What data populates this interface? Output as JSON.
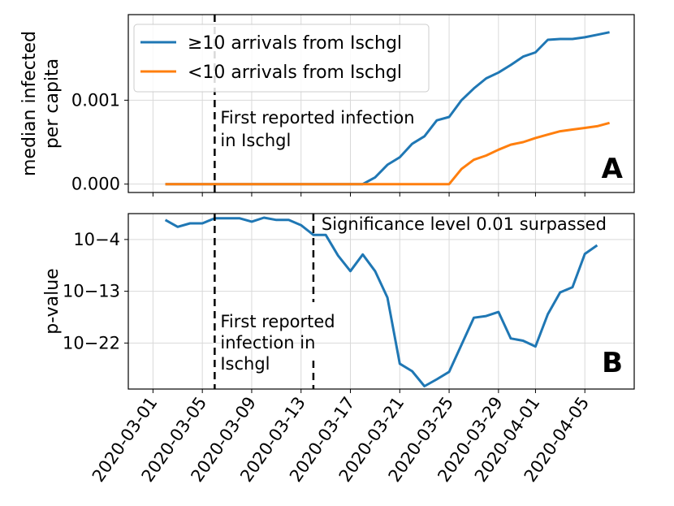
{
  "chart_data": [
    {
      "type": "line",
      "panel_label": "A",
      "ylabel_lines": [
        "median infected",
        "per capita"
      ],
      "ylim": [
        -0.0001,
        0.00202
      ],
      "yticks": [
        0.0,
        0.001
      ],
      "ytick_labels": [
        "0.000",
        "0.001"
      ],
      "xdomain": [
        "2020-02-28",
        "2020-04-09"
      ],
      "grid": true,
      "legend_position": "top-left",
      "series": [
        {
          "name": "≥10 arrivals from Ischgl",
          "color": "#1f77b4",
          "x": [
            "2020-03-02",
            "2020-03-18",
            "2020-03-19",
            "2020-03-20",
            "2020-03-21",
            "2020-03-22",
            "2020-03-23",
            "2020-03-24",
            "2020-03-25",
            "2020-03-26",
            "2020-03-27",
            "2020-03-28",
            "2020-03-29",
            "2020-03-30",
            "2020-03-31",
            "2020-04-01",
            "2020-04-02",
            "2020-04-03",
            "2020-04-04",
            "2020-04-05",
            "2020-04-06",
            "2020-04-07"
          ],
          "y": [
            0,
            0,
            8e-05,
            0.00023,
            0.00032,
            0.00048,
            0.00057,
            0.00076,
            0.0008,
            0.001,
            0.00114,
            0.00126,
            0.00133,
            0.00142,
            0.00152,
            0.00157,
            0.00172,
            0.00173,
            0.00173,
            0.00175,
            0.00178,
            0.00181
          ]
        },
        {
          "name": "<10 arrivals from Ischgl",
          "color": "#ff7f0e",
          "x": [
            "2020-03-02",
            "2020-03-25",
            "2020-03-26",
            "2020-03-27",
            "2020-03-28",
            "2020-03-29",
            "2020-03-30",
            "2020-03-31",
            "2020-04-01",
            "2020-04-02",
            "2020-04-03",
            "2020-04-04",
            "2020-04-05",
            "2020-04-06",
            "2020-04-07"
          ],
          "y": [
            0,
            0,
            0.00018,
            0.00029,
            0.00034,
            0.00041,
            0.00047,
            0.0005,
            0.00055,
            0.00059,
            0.00063,
            0.00065,
            0.00067,
            0.00069,
            0.00073
          ]
        }
      ],
      "vline": {
        "date": "2020-03-06",
        "label_lines": [
          "First reported infection",
          "in Ischgl"
        ]
      }
    },
    {
      "type": "line",
      "panel_label": "B",
      "ylabel": "p-value",
      "yscale": "log",
      "ylim_exp": [
        -30,
        0.5
      ],
      "yticks_exp": [
        -4,
        -13,
        -22
      ],
      "ytick_labels": [
        "10−4",
        "10−13",
        "10−22"
      ],
      "xdomain": [
        "2020-02-28",
        "2020-04-09"
      ],
      "grid": true,
      "series": [
        {
          "name": "p-value",
          "color": "#1f77b4",
          "x": [
            "2020-03-02",
            "2020-03-03",
            "2020-03-04",
            "2020-03-05",
            "2020-03-06",
            "2020-03-07",
            "2020-03-08",
            "2020-03-09",
            "2020-03-10",
            "2020-03-11",
            "2020-03-12",
            "2020-03-13",
            "2020-03-14",
            "2020-03-15",
            "2020-03-16",
            "2020-03-17",
            "2020-03-18",
            "2020-03-19",
            "2020-03-20",
            "2020-03-21",
            "2020-03-22",
            "2020-03-23",
            "2020-03-24",
            "2020-03-25",
            "2020-03-26",
            "2020-03-27",
            "2020-03-28",
            "2020-03-29",
            "2020-03-30",
            "2020-03-31",
            "2020-04-01",
            "2020-04-02",
            "2020-04-03",
            "2020-04-04",
            "2020-04-05",
            "2020-04-06"
          ],
          "log10_p": [
            -0.6,
            -1.8,
            -1.2,
            -1.2,
            -0.3,
            -0.3,
            -0.3,
            -0.9,
            -0.2,
            -0.6,
            -0.6,
            -1.5,
            -3.2,
            -3.2,
            -6.8,
            -9.5,
            -6.6,
            -9.5,
            -14.1,
            -25.6,
            -26.9,
            -29.5,
            -28.3,
            -27.0,
            -22.3,
            -17.6,
            -17.3,
            -16.6,
            -21.2,
            -21.6,
            -22.6,
            -17.0,
            -13.2,
            -12.3,
            -6.5,
            -5.0
          ]
        }
      ],
      "vlines": [
        {
          "date": "2020-03-06",
          "label_lines": [
            "First reported",
            "infection in",
            "Ischgl"
          ]
        },
        {
          "date": "2020-03-14",
          "label_lines": [
            "Significance level 0.01 surpassed"
          ]
        }
      ]
    }
  ],
  "x_axis": {
    "tick_dates": [
      "2020-03-01",
      "2020-03-05",
      "2020-03-09",
      "2020-03-13",
      "2020-03-17",
      "2020-03-21",
      "2020-03-25",
      "2020-03-29",
      "2020-04-01",
      "2020-04-05"
    ],
    "tick_labels": [
      "2020-03-01",
      "2020-03-05",
      "2020-03-09",
      "2020-03-13",
      "2020-03-17",
      "2020-03-21",
      "2020-03-25",
      "2020-03-29",
      "2020-04-01",
      "2020-04-05"
    ]
  }
}
